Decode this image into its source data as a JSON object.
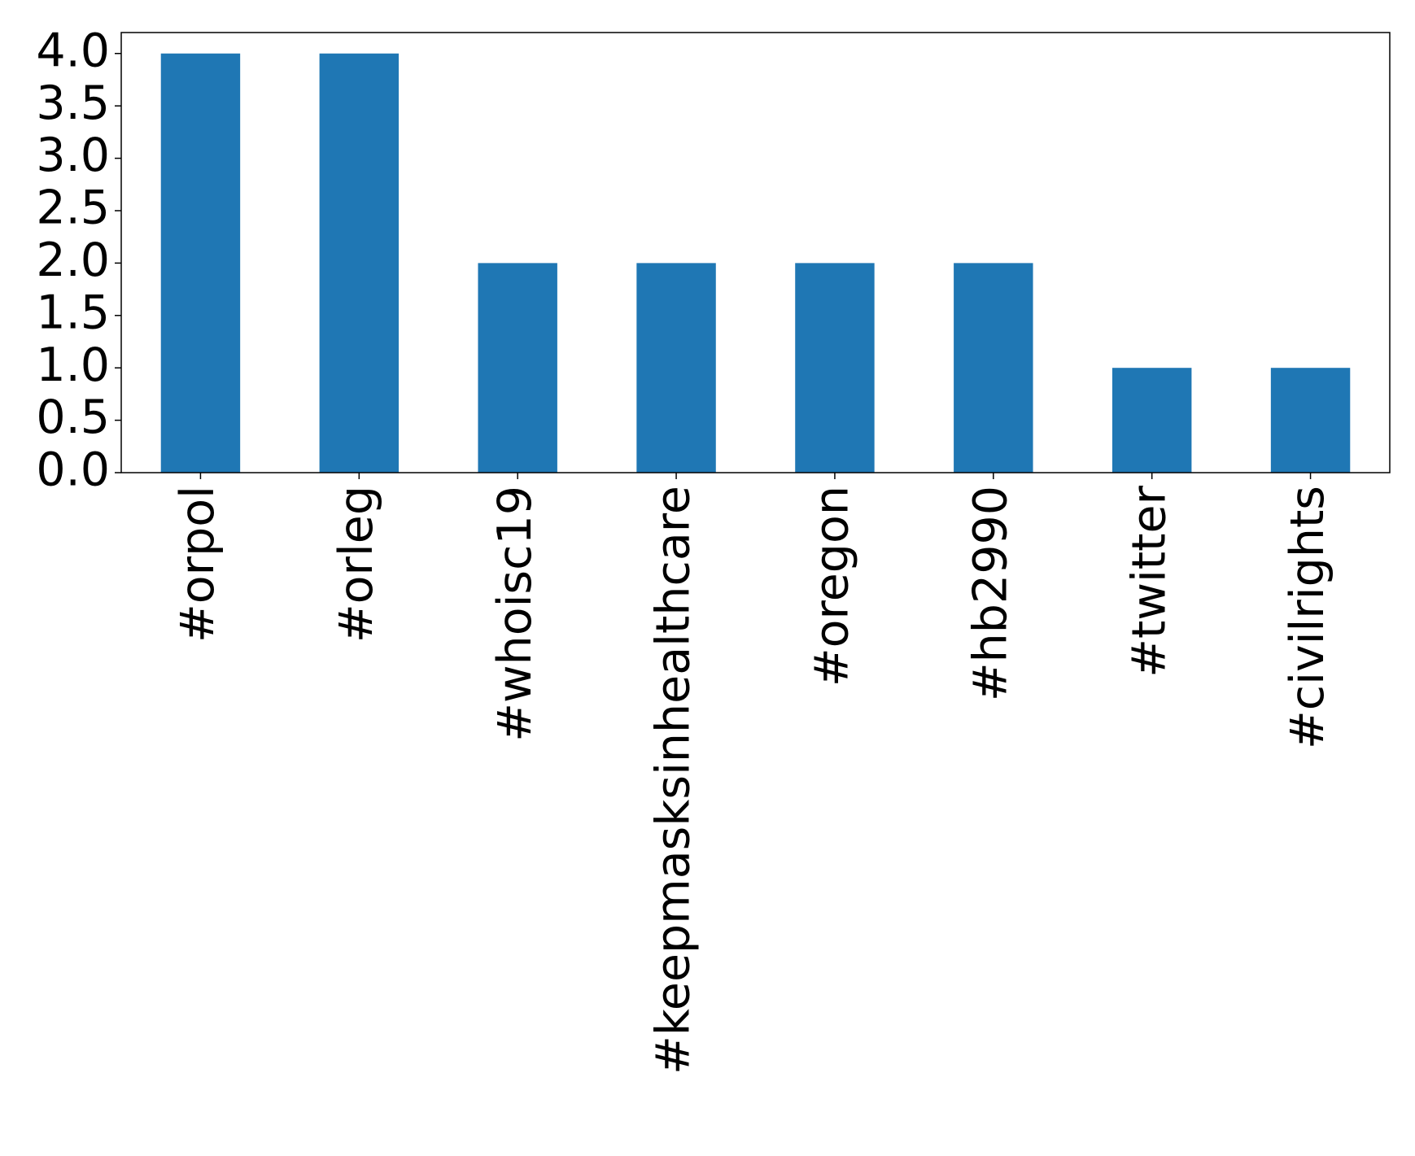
{
  "chart_data": {
    "type": "bar",
    "categories": [
      "#orpol",
      "#orleg",
      "#whoisc19",
      "#keepmasksinhealthcare",
      "#oregon",
      "#hb2990",
      "#twitter",
      "#civilrights"
    ],
    "values": [
      4,
      4,
      2,
      2,
      2,
      2,
      1,
      1
    ],
    "color": "#1f77b4",
    "ylim": [
      0,
      4.2
    ],
    "yticks": [
      {
        "value": 0,
        "label": "0.0"
      },
      0.5,
      {
        "value": 1,
        "label": "1.0"
      },
      1.5,
      {
        "value": 2,
        "label": "2.0"
      },
      2.5,
      {
        "value": 3,
        "label": "3.0"
      },
      3.5,
      {
        "value": 4,
        "label": "4.0"
      }
    ],
    "grid": false
  }
}
